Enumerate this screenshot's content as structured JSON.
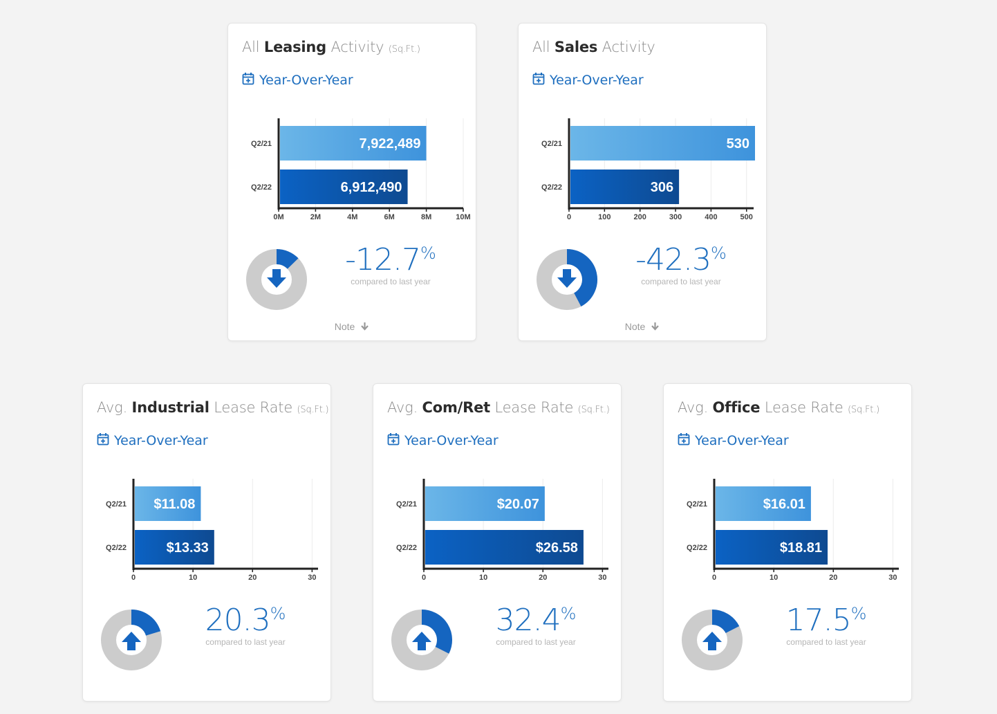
{
  "colors": {
    "accent": "#1f6fbf",
    "bar_light_start": "#6bb6e8",
    "bar_light_end": "#3e93dc",
    "bar_dark_start": "#0b62c4",
    "bar_dark_end": "#0e4a91",
    "donut_grey": "#cccccc",
    "donut_fill": "#1565c0"
  },
  "common": {
    "yoy_label": "Year-Over-Year",
    "compared_label": "compared to last year",
    "note_label": "Note",
    "calendar_icon": "calendar-plus-icon"
  },
  "cards": [
    {
      "title_prefix": "All ",
      "title_strong": "Leasing",
      "title_suffix": " Activity ",
      "title_unit": "(Sq.Ft.)",
      "change_value": "-12.7",
      "change_unit": "%",
      "direction": "down",
      "donut_fraction": 0.127,
      "note": true
    },
    {
      "title_prefix": "All ",
      "title_strong": "Sales",
      "title_suffix": " Activity",
      "title_unit": "",
      "change_value": "-42.3",
      "change_unit": "%",
      "direction": "down",
      "donut_fraction": 0.423,
      "note": true
    },
    {
      "title_prefix": "Avg. ",
      "title_strong": "Industrial",
      "title_suffix": " Lease Rate ",
      "title_unit": "(Sq.Ft.)",
      "change_value": "20.3",
      "change_unit": "%",
      "direction": "up",
      "donut_fraction": 0.203,
      "note": false
    },
    {
      "title_prefix": "Avg. ",
      "title_strong": "Com/Ret",
      "title_suffix": " Lease Rate ",
      "title_unit": "(Sq.Ft.)",
      "change_value": "32.4",
      "change_unit": "%",
      "direction": "up",
      "donut_fraction": 0.324,
      "note": false
    },
    {
      "title_prefix": "Avg. ",
      "title_strong": "Office",
      "title_suffix": " Lease Rate ",
      "title_unit": "(Sq.Ft.)",
      "change_value": "17.5",
      "change_unit": "%",
      "direction": "up",
      "donut_fraction": 0.175,
      "note": false
    }
  ],
  "chart_data": [
    {
      "type": "bar",
      "orientation": "horizontal",
      "categories": [
        "Q2/21",
        "Q2/22"
      ],
      "values": [
        7922489,
        6912490
      ],
      "value_labels": [
        "7,922,489",
        "6,912,490"
      ],
      "xlim": [
        0,
        10000000
      ],
      "ticks": [
        0,
        2000000,
        4000000,
        6000000,
        8000000,
        10000000
      ],
      "tick_labels": [
        "0M",
        "2M",
        "4M",
        "6M",
        "8M",
        "10M"
      ],
      "grid": true
    },
    {
      "type": "bar",
      "orientation": "horizontal",
      "categories": [
        "Q2/21",
        "Q2/22"
      ],
      "values": [
        530,
        306
      ],
      "value_labels": [
        "530",
        "306"
      ],
      "xlim": [
        0,
        520
      ],
      "ticks": [
        0,
        100,
        200,
        300,
        400,
        500
      ],
      "tick_labels": [
        "0",
        "100",
        "200",
        "300",
        "400",
        "500"
      ],
      "grid": true
    },
    {
      "type": "bar",
      "orientation": "horizontal",
      "categories": [
        "Q2/21",
        "Q2/22"
      ],
      "values": [
        11.08,
        13.33
      ],
      "value_labels": [
        "$11.08",
        "$13.33"
      ],
      "xlim": [
        0,
        31
      ],
      "ticks": [
        0,
        10,
        20,
        30
      ],
      "tick_labels": [
        "0",
        "10",
        "20",
        "30"
      ],
      "grid": true
    },
    {
      "type": "bar",
      "orientation": "horizontal",
      "categories": [
        "Q2/21",
        "Q2/22"
      ],
      "values": [
        20.07,
        26.58
      ],
      "value_labels": [
        "$20.07",
        "$26.58"
      ],
      "xlim": [
        0,
        31
      ],
      "ticks": [
        0,
        10,
        20,
        30
      ],
      "tick_labels": [
        "0",
        "10",
        "20",
        "30"
      ],
      "grid": true
    },
    {
      "type": "bar",
      "orientation": "horizontal",
      "categories": [
        "Q2/21",
        "Q2/22"
      ],
      "values": [
        16.01,
        18.81
      ],
      "value_labels": [
        "$16.01",
        "$18.81"
      ],
      "xlim": [
        0,
        31
      ],
      "ticks": [
        0,
        10,
        20,
        30
      ],
      "tick_labels": [
        "0",
        "10",
        "20",
        "30"
      ],
      "grid": true
    }
  ]
}
